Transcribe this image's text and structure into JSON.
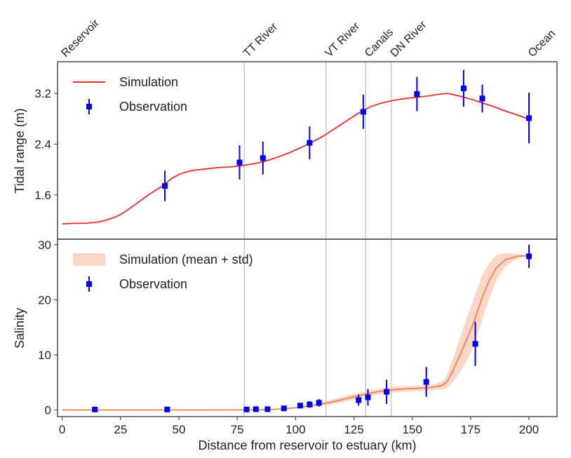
{
  "chart_data": [
    {
      "type": "line",
      "ylabel": "Tidal range (m)",
      "xlim": [
        -2,
        212
      ],
      "ylim": [
        0.9,
        3.7
      ],
      "yticks": [
        1.6,
        2.4,
        3.2
      ],
      "ytick_labels": [
        "1.6",
        "2.4",
        "3.2"
      ],
      "grid": false,
      "legend_position": "top-left",
      "series": [
        {
          "name": "Simulation",
          "color": "#ef2b2b",
          "x": [
            0,
            5,
            10,
            15,
            18,
            22,
            25,
            28,
            31,
            34,
            37,
            40,
            43,
            45,
            47,
            50,
            53,
            57,
            62,
            67,
            72,
            77,
            82,
            87,
            92,
            97,
            102,
            107,
            112,
            117,
            122,
            127,
            132,
            137,
            142,
            147,
            152,
            157,
            162,
            165,
            170,
            175,
            180,
            185,
            190,
            195,
            200
          ],
          "y": [
            1.14,
            1.15,
            1.15,
            1.17,
            1.19,
            1.24,
            1.29,
            1.36,
            1.44,
            1.52,
            1.6,
            1.67,
            1.74,
            1.8,
            1.86,
            1.92,
            1.96,
            1.99,
            2.01,
            2.03,
            2.04,
            2.06,
            2.09,
            2.13,
            2.19,
            2.26,
            2.34,
            2.43,
            2.53,
            2.65,
            2.77,
            2.89,
            2.99,
            3.05,
            3.09,
            3.12,
            3.14,
            3.16,
            3.19,
            3.2,
            3.16,
            3.11,
            3.05,
            2.99,
            2.92,
            2.86,
            2.79
          ]
        },
        {
          "name": "Observation",
          "color": "#0000ee",
          "x": [
            44,
            76,
            86,
            106,
            129,
            152,
            172,
            180,
            200
          ],
          "y": [
            1.74,
            2.11,
            2.18,
            2.42,
            2.91,
            3.19,
            3.28,
            3.12,
            2.81
          ],
          "err": [
            0.24,
            0.27,
            0.26,
            0.26,
            0.27,
            0.27,
            0.29,
            0.22,
            0.4
          ]
        }
      ],
      "vertical_lines": [
        {
          "x": 78,
          "label": "TT River"
        },
        {
          "x": 113,
          "label": "VT River"
        },
        {
          "x": 130,
          "label": "Canals"
        },
        {
          "x": 141,
          "label": "DN River"
        }
      ],
      "top_labels": [
        {
          "x": 0,
          "label": "Reservoir"
        },
        {
          "x": 78,
          "label": "TT River"
        },
        {
          "x": 113,
          "label": "VT River"
        },
        {
          "x": 130,
          "label": "Canals"
        },
        {
          "x": 141,
          "label": "DN River"
        },
        {
          "x": 200,
          "label": "Ocean"
        }
      ]
    },
    {
      "type": "area",
      "xlabel": "Distance from reservoir to estuary (km)",
      "ylabel": "Salinity",
      "xlim": [
        -2,
        212
      ],
      "ylim": [
        -1.2,
        31
      ],
      "xticks": [
        0,
        25,
        50,
        75,
        100,
        125,
        150,
        175,
        200
      ],
      "xtick_labels": [
        "0",
        "25",
        "50",
        "75",
        "100",
        "125",
        "150",
        "175",
        "200"
      ],
      "yticks": [
        0,
        10,
        20,
        30
      ],
      "ytick_labels": [
        "0",
        "10",
        "20",
        "30"
      ],
      "grid": false,
      "legend_position": "top-left",
      "series": [
        {
          "name": "Simulation (mean + std)",
          "color": "#f07a4a",
          "band_color": "#fbc8b4",
          "x": [
            0,
            20,
            40,
            60,
            80,
            90,
            100,
            105,
            110,
            115,
            120,
            125,
            130,
            135,
            140,
            145,
            150,
            155,
            160,
            163,
            165,
            167,
            170,
            173,
            176,
            178,
            180,
            183,
            186,
            190,
            195,
            200
          ],
          "mean": [
            0,
            0,
            0,
            0,
            0.02,
            0.1,
            0.4,
            0.7,
            1.0,
            1.4,
            1.9,
            2.4,
            2.9,
            3.3,
            3.6,
            3.8,
            3.9,
            4.0,
            4.2,
            4.5,
            5.2,
            6.8,
            9.5,
            12.5,
            15.5,
            18.0,
            20.5,
            23.5,
            25.8,
            27.3,
            27.9,
            28.0
          ],
          "std": [
            0,
            0,
            0,
            0,
            0.02,
            0.05,
            0.1,
            0.2,
            0.3,
            0.4,
            0.5,
            0.5,
            0.5,
            0.5,
            0.5,
            0.5,
            0.5,
            0.5,
            0.5,
            0.8,
            1.2,
            2.0,
            3.0,
            3.8,
            4.2,
            4.2,
            4.0,
            3.2,
            2.3,
            1.2,
            0.4,
            0.1
          ]
        },
        {
          "name": "Observation",
          "color": "#0000ee",
          "x": [
            14,
            45,
            79,
            83,
            88,
            95,
            102,
            106,
            110,
            127,
            131,
            139,
            156,
            177,
            200
          ],
          "y": [
            0.1,
            0.1,
            0.1,
            0.15,
            0.15,
            0.3,
            0.8,
            1.0,
            1.3,
            1.8,
            2.3,
            3.3,
            5.1,
            12.0,
            27.9
          ],
          "err": [
            0.1,
            0.1,
            0.1,
            0.1,
            0.2,
            0.3,
            0.5,
            0.6,
            0.7,
            1.0,
            1.5,
            2.2,
            2.7,
            4.0,
            2.1
          ]
        }
      ],
      "vertical_lines": [
        {
          "x": 78
        },
        {
          "x": 113
        },
        {
          "x": 130
        },
        {
          "x": 141
        }
      ]
    }
  ]
}
